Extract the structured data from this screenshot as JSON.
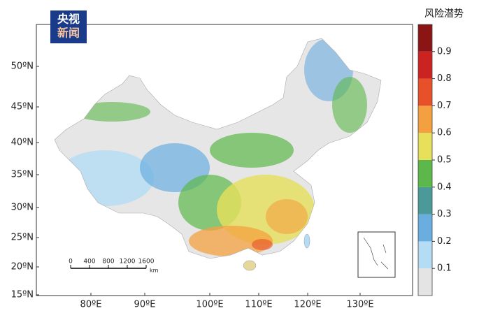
{
  "logo": {
    "line1": "央视",
    "line2": "新闻"
  },
  "map": {
    "lat_labels": [
      "50ºN",
      "45ºN",
      "40ºN",
      "35ºN",
      "30ºN",
      "25ºN",
      "20ºN",
      "15ºN"
    ],
    "lon_labels": [
      "80ºE",
      "90ºE",
      "100ºE",
      "110ºE",
      "120ºE",
      "130ºE"
    ],
    "scale_bar": {
      "ticks": [
        0,
        400,
        800,
        1200,
        1600
      ],
      "unit": "km"
    }
  },
  "legend": {
    "title": "风险潜势",
    "range": [
      0,
      1
    ],
    "ticks": [
      0.1,
      0.2,
      0.3,
      0.4,
      0.5,
      0.6,
      0.7,
      0.8,
      0.9
    ],
    "colors": [
      "#e4e4e4",
      "#b4dcf4",
      "#6aaee0",
      "#4a9a9a",
      "#5cb84a",
      "#e6e05a",
      "#f4a040",
      "#e8502a",
      "#cc2222",
      "#8b1414"
    ]
  }
}
